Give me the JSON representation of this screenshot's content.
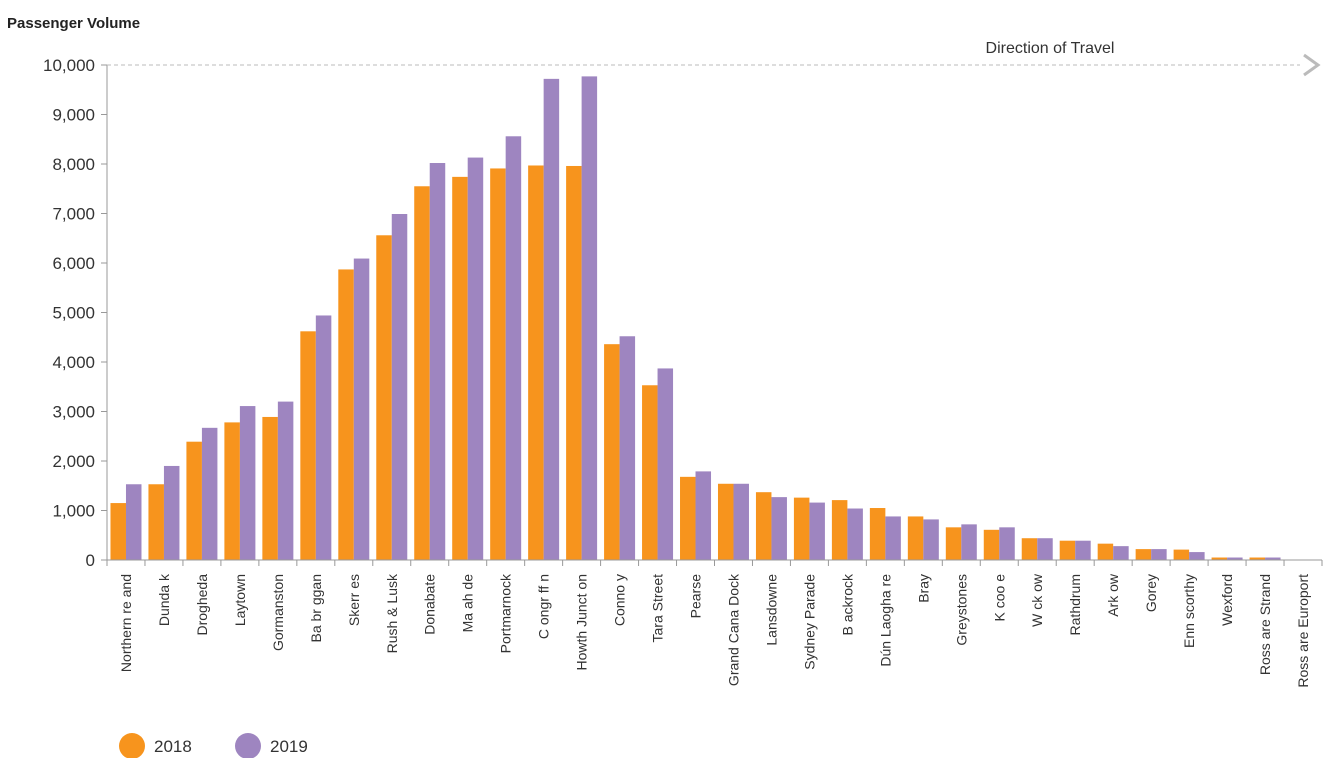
{
  "chart_data": {
    "type": "bar",
    "title": "",
    "ylabel": "Passenger Volume",
    "xlabel": "",
    "annotation": "Direction of Travel",
    "ylim": [
      0,
      10000
    ],
    "yticks": [
      0,
      1000,
      2000,
      3000,
      4000,
      5000,
      6000,
      7000,
      8000,
      9000,
      10000
    ],
    "ytick_labels": [
      "0",
      "1,000",
      "2,000",
      "3,000",
      "4,000",
      "5,000",
      "6,000",
      "7,000",
      "8,000",
      "9,000",
      "10,000"
    ],
    "legend_position": "bottom-left",
    "grid": false,
    "categories": [
      "Northern re and",
      "Dunda k",
      "Drogheda",
      "Laytown",
      "Gormanston",
      "Ba br ggan",
      "Skerr es",
      "Rush & Lusk",
      "Donabate",
      "Ma ah de",
      "Portmarnock",
      "C ongr ff n",
      "Howth Junct on",
      "Conno y",
      "Tara Street",
      "Pearse",
      "Grand Cana Dock",
      "Lansdowne",
      "Sydney Parade",
      "B ackrock",
      "Dún Laogha re",
      "Bray",
      "Greystones",
      "K coo e",
      "W ck ow",
      "Rathdrum",
      "Ark ow",
      "Gorey",
      "Enn scorthy",
      "Wexford",
      "Ross are Strand",
      "Ross are Europort"
    ],
    "series": [
      {
        "name": "2018",
        "color": "#F7941D",
        "values": [
          1150,
          1530,
          2390,
          2780,
          2890,
          4620,
          5870,
          6560,
          7550,
          7740,
          7910,
          7970,
          7960,
          4360,
          3530,
          1680,
          1540,
          1370,
          1260,
          1210,
          1050,
          880,
          660,
          610,
          440,
          390,
          330,
          220,
          210,
          50,
          50,
          0
        ]
      },
      {
        "name": "2019",
        "color": "#9E85C0",
        "values": [
          1530,
          1900,
          2670,
          3110,
          3200,
          4940,
          6090,
          6990,
          8020,
          8130,
          8560,
          9720,
          9770,
          4520,
          3870,
          1790,
          1540,
          1270,
          1160,
          1040,
          880,
          820,
          720,
          660,
          440,
          390,
          280,
          220,
          160,
          50,
          50,
          0
        ]
      }
    ]
  }
}
